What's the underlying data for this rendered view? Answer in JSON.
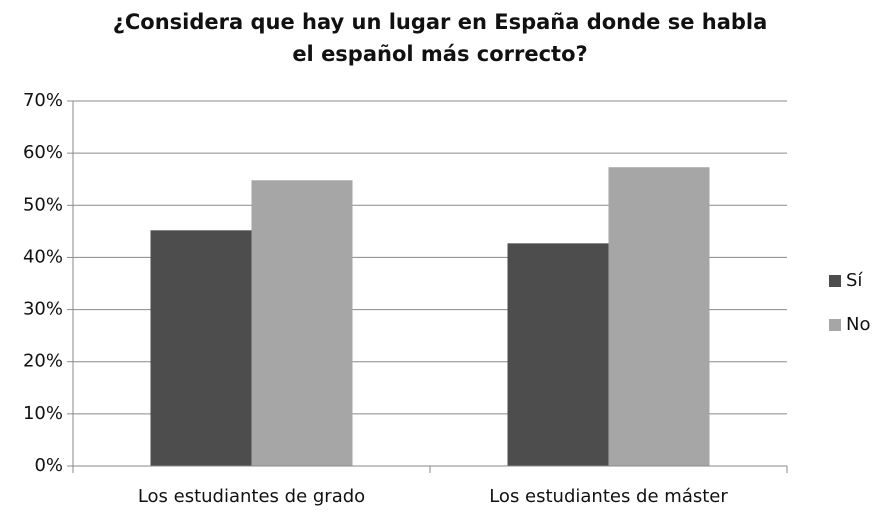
{
  "chart_data": {
    "type": "bar",
    "title": "¿Considera que hay un lugar en España donde se habla el español más correcto?",
    "categories": [
      "Los estudiantes de grado",
      "Los estudiantes de máster"
    ],
    "series": [
      {
        "name": "Sí",
        "color": "#4d4d4d",
        "values": [
          45.2,
          42.7
        ]
      },
      {
        "name": "No",
        "color": "#a6a6a6",
        "values": [
          54.8,
          57.3
        ]
      }
    ],
    "ylim": [
      0,
      70
    ],
    "yticks": [
      {
        "value": 0,
        "label": "0%"
      },
      {
        "value": 10,
        "label": "10%"
      },
      {
        "value": 20,
        "label": "20%"
      },
      {
        "value": 30,
        "label": "30%"
      },
      {
        "value": 40,
        "label": "40%"
      },
      {
        "value": 50,
        "label": "50%"
      },
      {
        "value": 60,
        "label": "60%"
      },
      {
        "value": 70,
        "label": "70%"
      }
    ],
    "grid": true,
    "legend": "right"
  }
}
